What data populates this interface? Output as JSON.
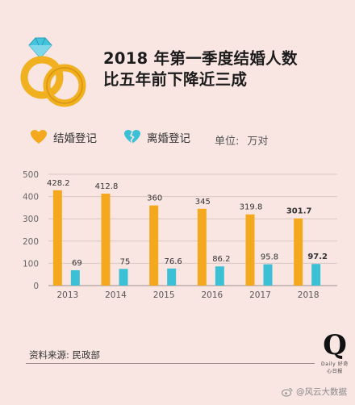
{
  "header": {
    "title_line1": "2018 年第一季度结婚人数",
    "title_line2": "比五年前下降近三成"
  },
  "legend": {
    "marriage": "结婚登记",
    "divorce": "离婚登记",
    "unit_label": "单位:",
    "unit_value": "万对"
  },
  "colors": {
    "marriage": "#f4a81d",
    "divorce": "#3cc0d6",
    "background": "#f9e6e3",
    "ring": "#f0b020",
    "diamond": "#44c4dd"
  },
  "icons": {
    "rings": "wedding-rings-icon",
    "marriage": "heart-icon",
    "divorce": "broken-heart-icon",
    "weibo": "weibo-icon"
  },
  "chart_data": {
    "type": "bar",
    "categories": [
      "2013",
      "2014",
      "2015",
      "2016",
      "2017",
      "2018"
    ],
    "series": [
      {
        "name": "结婚登记",
        "values": [
          428.2,
          412.8,
          360,
          345,
          319.8,
          301.7
        ]
      },
      {
        "name": "离婚登记",
        "values": [
          69,
          75,
          76.6,
          86.2,
          95.8,
          97.2
        ]
      }
    ],
    "labels": {
      "marriage": [
        "428.2",
        "412.8",
        "360",
        "345",
        "319.8",
        "301.7"
      ],
      "divorce": [
        "69",
        "75",
        "76.6",
        "86.2",
        "95.8",
        "97.2"
      ]
    },
    "yticks": [
      "0",
      "100",
      "200",
      "300",
      "400",
      "500"
    ],
    "ylim": [
      0,
      500
    ],
    "grid": true,
    "legend_position": "top-left"
  },
  "footer": {
    "source": "资料来源: 民政部",
    "logo_letter": "Q",
    "logo_sub": "Daily 好奇心日报",
    "weibo_handle": "@风云大数据"
  }
}
